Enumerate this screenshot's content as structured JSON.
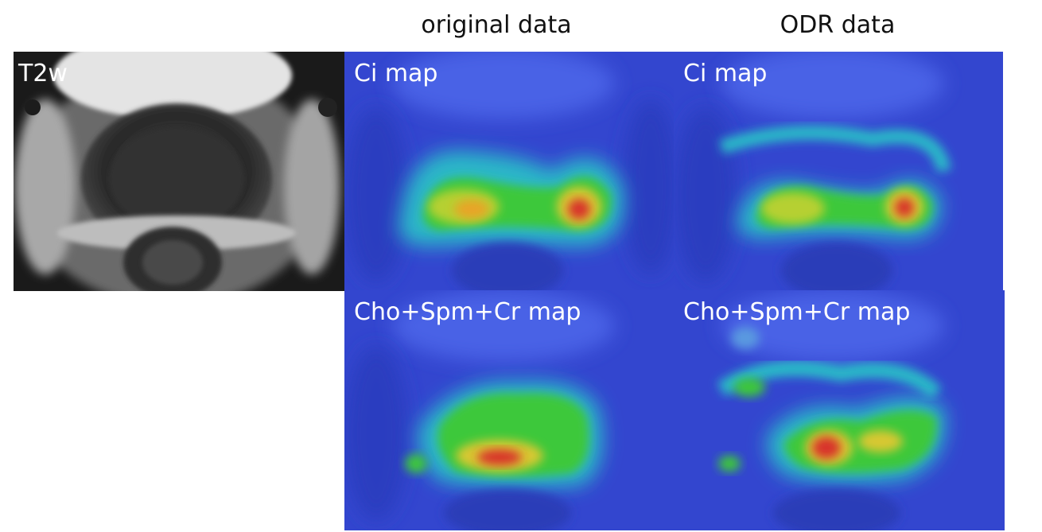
{
  "headers": {
    "original": "original data",
    "odr": "ODR data"
  },
  "panels": {
    "t2w": {
      "label": "T2w"
    },
    "ci_original": {
      "label": "Ci map"
    },
    "ci_odr": {
      "label": "Ci map"
    },
    "cho_original": {
      "label": "Cho+Spm+Cr map"
    },
    "cho_odr": {
      "label": "Cho+Spm+Cr map"
    }
  },
  "colors": {
    "map_background": "#2f48d6",
    "map_cyan": "#28c0c8",
    "map_green": "#3ec83a",
    "map_yellow": "#e8c830",
    "map_red": "#d8302a"
  }
}
